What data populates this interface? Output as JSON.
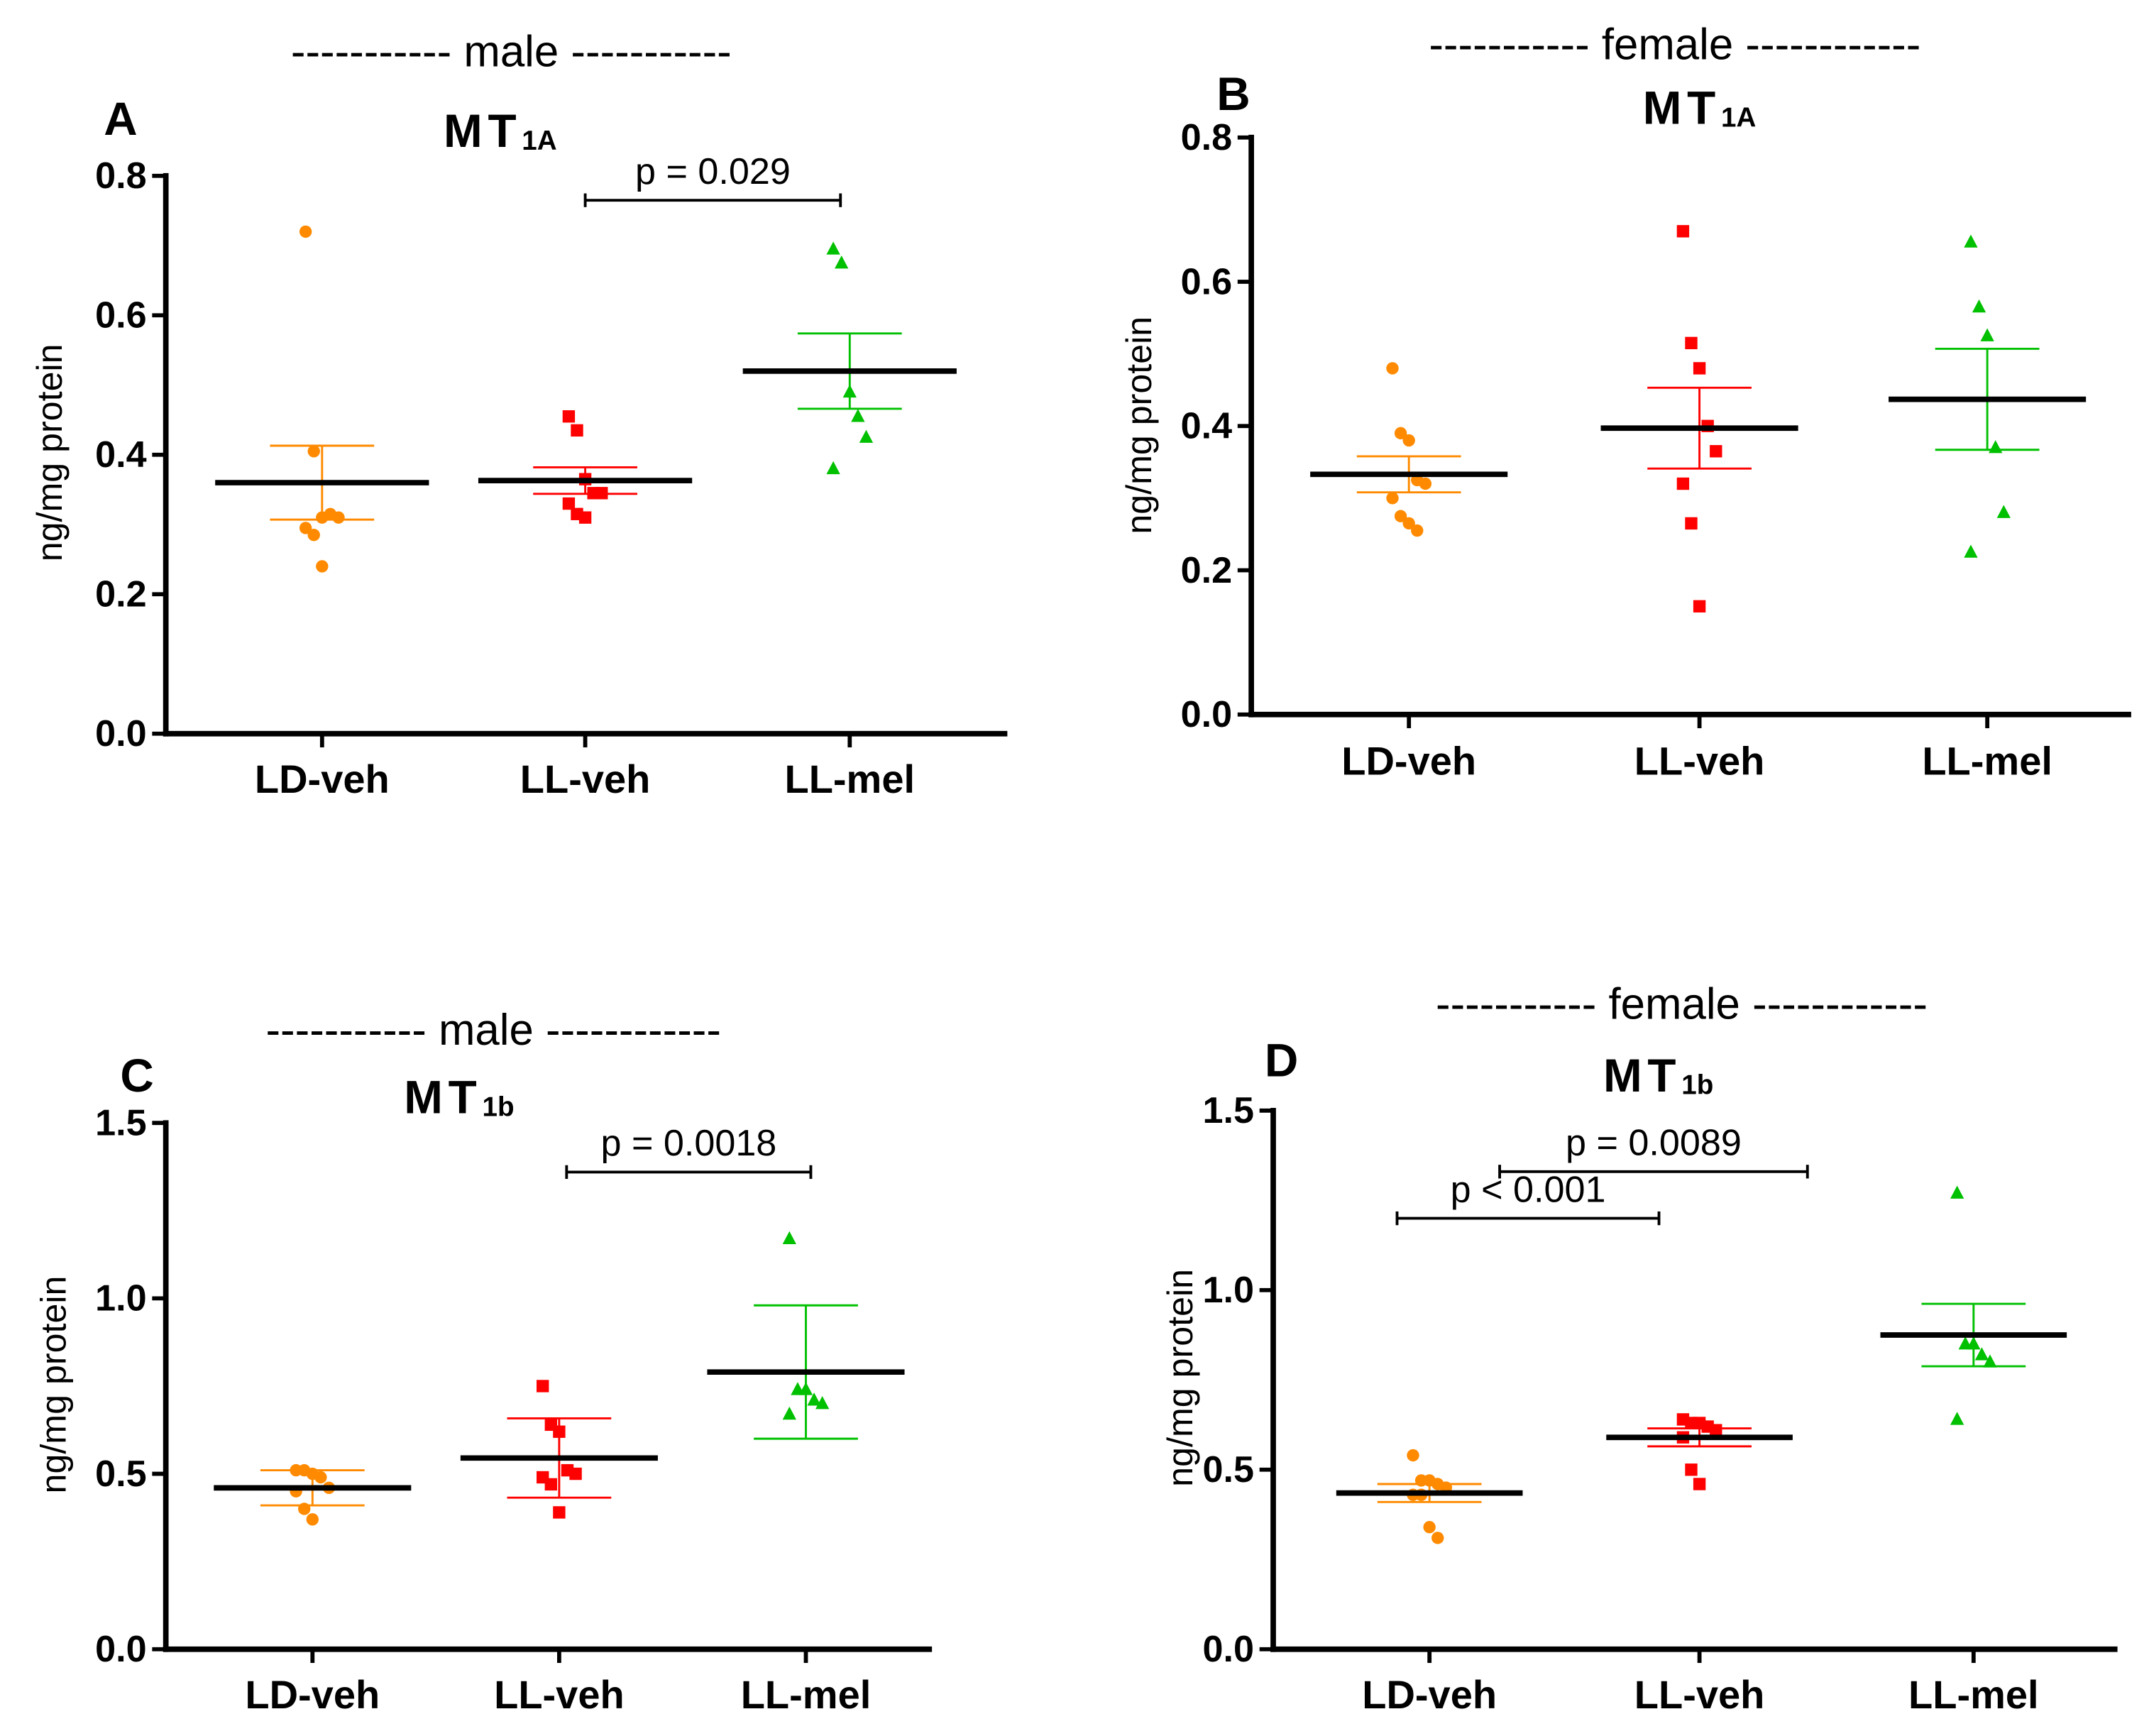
{
  "chart_data": [
    {
      "type": "scatter",
      "panel": "A",
      "header": "-----------  male -----------",
      "title_main": "MT",
      "title_sub": "1A",
      "ylabel": "ng/mg protein",
      "ylim": [
        0,
        0.8
      ],
      "yticks": [
        "0.0",
        "0.2",
        "0.4",
        "0.6",
        "0.8"
      ],
      "ytick_values": [
        0,
        0.2,
        0.4,
        0.6,
        0.8
      ],
      "categories": [
        "LD-veh",
        "LL-veh",
        "LL-mel"
      ],
      "series": [
        {
          "name": "LD-veh",
          "marker": "circle",
          "color": "#ff8a00",
          "values": [
            0.72,
            0.405,
            0.31,
            0.315,
            0.31,
            0.295,
            0.285,
            0.24
          ],
          "mean": 0.36,
          "sem": 0.053
        },
        {
          "name": "LL-veh",
          "marker": "square",
          "color": "#ff0000",
          "values": [
            0.455,
            0.435,
            0.365,
            0.345,
            0.345,
            0.33,
            0.315,
            0.31
          ],
          "mean": 0.363,
          "sem": 0.019
        },
        {
          "name": "LL-mel",
          "marker": "triangle",
          "color": "#00c000",
          "values": [
            0.695,
            0.675,
            0.49,
            0.455,
            0.425,
            0.38
          ],
          "mean": 0.52,
          "sem": 0.054
        }
      ],
      "annotations": [
        {
          "text": "p = 0.029",
          "from": 1.0,
          "to": 1.97,
          "y": 0.765
        }
      ]
    },
    {
      "type": "scatter",
      "panel": "B",
      "header": "-----------  female ------------",
      "title_main": "MT",
      "title_sub": "1A",
      "ylabel": "ng/mg protein",
      "ylim": [
        0,
        0.8
      ],
      "yticks": [
        "0.0",
        "0.2",
        "0.4",
        "0.6",
        "0.8"
      ],
      "ytick_values": [
        0,
        0.2,
        0.4,
        0.6,
        0.8
      ],
      "categories": [
        "LD-veh",
        "LL-veh",
        "LL-mel"
      ],
      "series": [
        {
          "name": "LD-veh",
          "marker": "circle",
          "color": "#ff8a00",
          "values": [
            0.48,
            0.39,
            0.38,
            0.325,
            0.32,
            0.3,
            0.275,
            0.265,
            0.255
          ],
          "mean": 0.333,
          "sem": 0.025
        },
        {
          "name": "LL-veh",
          "marker": "square",
          "color": "#ff0000",
          "values": [
            0.67,
            0.515,
            0.48,
            0.4,
            0.365,
            0.32,
            0.265,
            0.15
          ],
          "mean": 0.397,
          "sem": 0.056
        },
        {
          "name": "LL-mel",
          "marker": "triangle",
          "color": "#00c000",
          "values": [
            0.655,
            0.565,
            0.525,
            0.37,
            0.28,
            0.225
          ],
          "mean": 0.437,
          "sem": 0.07
        }
      ],
      "annotations": []
    },
    {
      "type": "scatter",
      "panel": "C",
      "header": "-----------  male ------------",
      "title_main": "MT",
      "title_sub": "1b",
      "ylabel": "ng/mg protein",
      "ylim": [
        0,
        1.5
      ],
      "yticks": [
        "0.0",
        "0.5",
        "1.0",
        "1.5"
      ],
      "ytick_values": [
        0,
        0.5,
        1.0,
        1.5
      ],
      "categories": [
        "LD-veh",
        "LL-veh",
        "LL-mel"
      ],
      "series": [
        {
          "name": "LD-veh",
          "marker": "circle",
          "color": "#ff8a00",
          "values": [
            0.51,
            0.51,
            0.5,
            0.49,
            0.46,
            0.45,
            0.4,
            0.37
          ],
          "mean": 0.46,
          "sem": 0.05
        },
        {
          "name": "LL-veh",
          "marker": "square",
          "color": "#ff0000",
          "values": [
            0.75,
            0.64,
            0.62,
            0.51,
            0.5,
            0.49,
            0.47,
            0.39
          ],
          "mean": 0.545,
          "sem": 0.113
        },
        {
          "name": "LL-mel",
          "marker": "triangle",
          "color": "#00c000",
          "values": [
            1.17,
            0.74,
            0.74,
            0.71,
            0.7,
            0.67
          ],
          "mean": 0.79,
          "sem": 0.19
        }
      ],
      "annotations": [
        {
          "text": "p = 0.0018",
          "from": 1.03,
          "to": 2.02,
          "y": 1.36
        }
      ]
    },
    {
      "type": "scatter",
      "panel": "D",
      "header": "-----------  female ------------",
      "title_main": "MT",
      "title_sub": "1b",
      "ylabel": "ng/mg protein",
      "ylim": [
        0,
        1.5
      ],
      "yticks": [
        "0.0",
        "0.5",
        "1.0",
        "1.5"
      ],
      "ytick_values": [
        0,
        0.5,
        1.0,
        1.5
      ],
      "categories": [
        "LD-veh",
        "LL-veh",
        "LL-mel"
      ],
      "series": [
        {
          "name": "LD-veh",
          "marker": "circle",
          "color": "#ff8a00",
          "values": [
            0.54,
            0.47,
            0.47,
            0.46,
            0.45,
            0.43,
            0.43,
            0.34,
            0.31
          ],
          "mean": 0.435,
          "sem": 0.025
        },
        {
          "name": "LL-veh",
          "marker": "square",
          "color": "#ff0000",
          "values": [
            0.64,
            0.63,
            0.63,
            0.62,
            0.61,
            0.59,
            0.5,
            0.46
          ],
          "mean": 0.59,
          "sem": 0.025
        },
        {
          "name": "LL-mel",
          "marker": "triangle",
          "color": "#00c000",
          "values": [
            1.27,
            0.85,
            0.85,
            0.82,
            0.8,
            0.64
          ],
          "mean": 0.875,
          "sem": 0.087
        }
      ],
      "annotations": [
        {
          "text": "p < 0.001",
          "from": -0.12,
          "to": 0.85,
          "y": 1.2
        },
        {
          "text": "p = 0.0089",
          "from": 0.26,
          "to": 1.4,
          "y": 1.33
        }
      ]
    }
  ]
}
